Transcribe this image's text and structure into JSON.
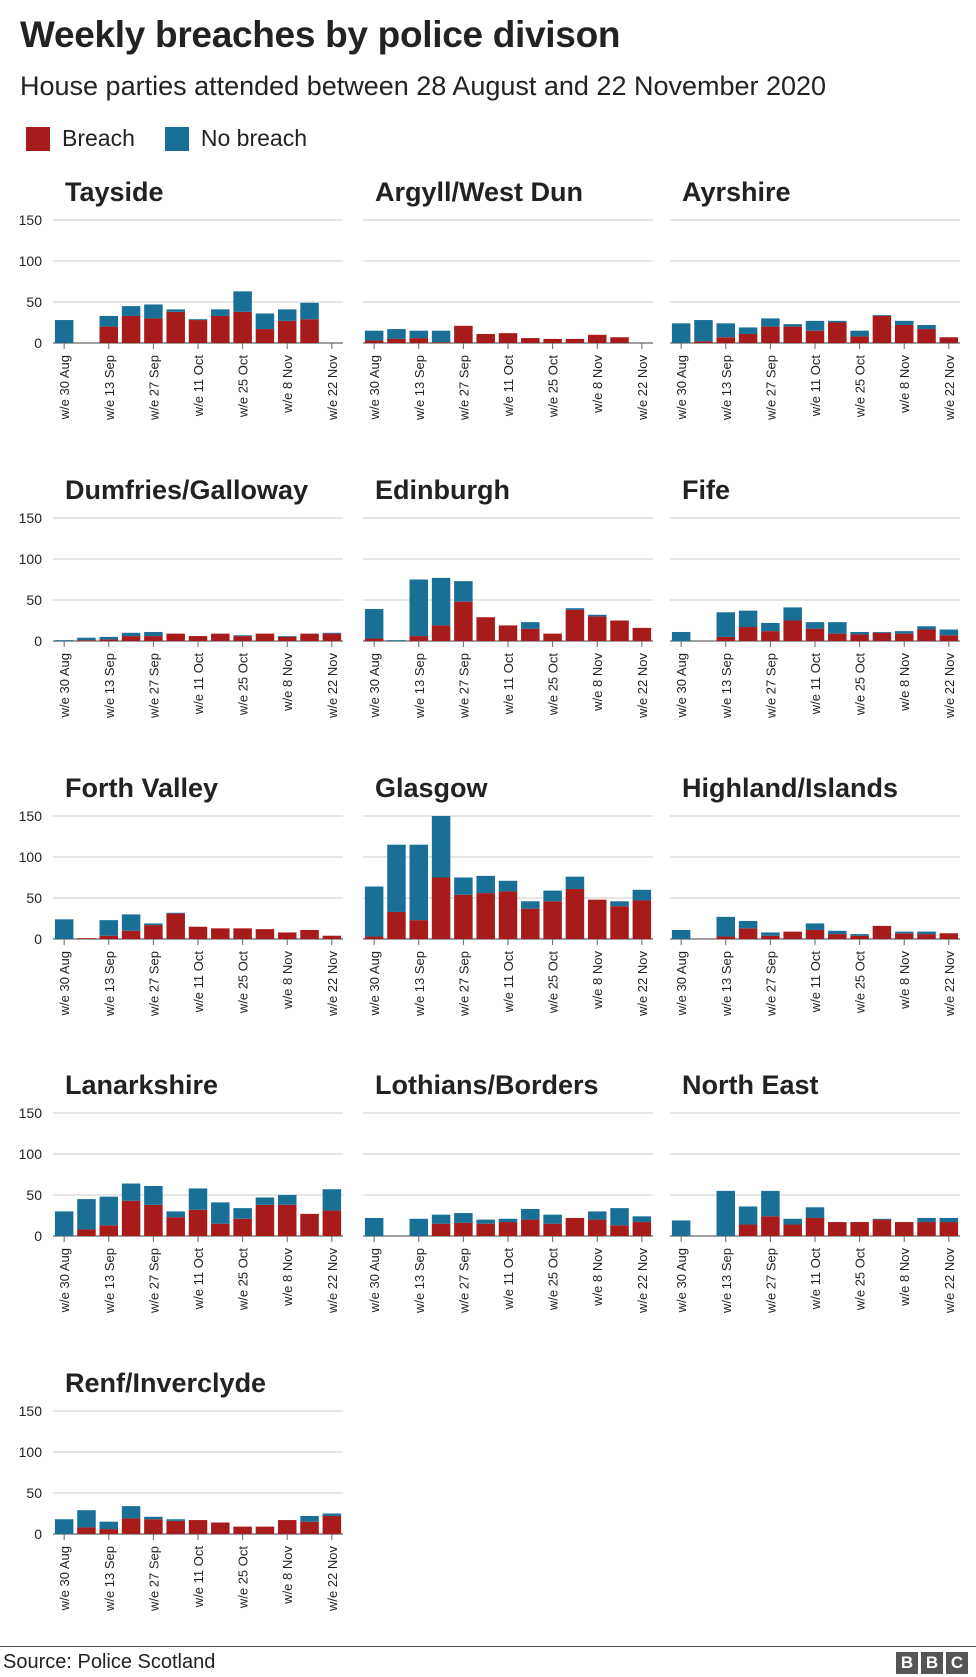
{
  "title": "Weekly breaches by police divison",
  "subtitle": "House parties attended between 28 August and 22 November 2020",
  "legend": [
    {
      "label": "Breach",
      "color": "#a81b1b"
    },
    {
      "label": "No breach",
      "color": "#1a6f96"
    }
  ],
  "source": "Source: Police Scotland",
  "logo": [
    "B",
    "B",
    "C"
  ],
  "chart_data": {
    "type": "bar",
    "stacked": true,
    "x_tick_labels": [
      "w/e 30 Aug",
      "w/e 13 Sep",
      "w/e 27 Sep",
      "w/e 11 Oct",
      "w/e 25 Oct",
      "w/e 8 Nov",
      "w/e 22 Nov"
    ],
    "y_ticks": [
      0,
      50,
      100,
      150
    ],
    "ylim": [
      0,
      150
    ],
    "grid": true,
    "weeks": 13,
    "series_names": [
      "Breach",
      "No breach"
    ],
    "panels": [
      {
        "name": "Tayside",
        "breach": [
          0,
          0,
          20,
          33,
          30,
          38,
          28,
          33,
          38,
          17,
          27,
          29,
          0
        ],
        "no_breach": [
          28,
          0,
          13,
          12,
          17,
          3,
          1,
          8,
          25,
          19,
          14,
          20,
          0
        ]
      },
      {
        "name": "Argyll/West Dun",
        "breach": [
          3,
          5,
          6,
          1,
          21,
          11,
          12,
          6,
          5,
          5,
          10,
          7,
          0
        ],
        "no_breach": [
          12,
          12,
          9,
          14,
          0,
          0,
          0,
          0,
          0,
          0,
          0,
          0,
          0
        ]
      },
      {
        "name": "Ayrshire",
        "breach": [
          0,
          2,
          7,
          11,
          20,
          20,
          15,
          25,
          8,
          33,
          22,
          17,
          7
        ],
        "no_breach": [
          24,
          26,
          17,
          8,
          10,
          3,
          12,
          2,
          7,
          1,
          5,
          5,
          0
        ]
      },
      {
        "name": "Dumfries/Galloway",
        "breach": [
          0,
          1,
          2,
          6,
          6,
          9,
          6,
          9,
          6,
          9,
          5,
          9,
          9
        ],
        "no_breach": [
          1,
          3,
          3,
          4,
          5,
          0,
          0,
          0,
          1,
          0,
          1,
          0,
          1
        ]
      },
      {
        "name": "Edinburgh",
        "breach": [
          3,
          0,
          6,
          19,
          48,
          29,
          19,
          15,
          9,
          38,
          30,
          25,
          16
        ],
        "no_breach": [
          36,
          1,
          69,
          58,
          25,
          0,
          0,
          8,
          0,
          2,
          2,
          0,
          0
        ]
      },
      {
        "name": "Fife",
        "breach": [
          0,
          0,
          5,
          17,
          12,
          25,
          15,
          9,
          8,
          10,
          9,
          14,
          7
        ],
        "no_breach": [
          11,
          0,
          30,
          20,
          10,
          16,
          8,
          14,
          3,
          1,
          3,
          4,
          7
        ]
      },
      {
        "name": "Forth Valley",
        "breach": [
          0,
          1,
          4,
          10,
          17,
          31,
          15,
          13,
          13,
          12,
          8,
          11,
          4
        ],
        "no_breach": [
          24,
          0,
          19,
          20,
          2,
          1,
          0,
          0,
          0,
          0,
          0,
          0,
          0
        ]
      },
      {
        "name": "Glasgow",
        "breach": [
          3,
          33,
          23,
          75,
          54,
          56,
          58,
          37,
          46,
          61,
          48,
          40,
          47
        ],
        "no_breach": [
          61,
          82,
          92,
          75,
          21,
          21,
          13,
          9,
          13,
          15,
          0,
          6,
          13
        ]
      },
      {
        "name": "Highland/Islands",
        "breach": [
          0,
          0,
          3,
          13,
          4,
          9,
          11,
          6,
          4,
          16,
          7,
          6,
          7
        ],
        "no_breach": [
          11,
          0,
          24,
          9,
          4,
          0,
          8,
          4,
          2,
          0,
          2,
          3,
          0
        ]
      },
      {
        "name": "Lanarkshire",
        "breach": [
          0,
          8,
          13,
          43,
          38,
          23,
          32,
          15,
          21,
          38,
          38,
          27,
          31
        ],
        "no_breach": [
          30,
          37,
          35,
          21,
          23,
          7,
          26,
          26,
          13,
          9,
          12,
          0,
          26
        ]
      },
      {
        "name": "Lothians/Borders",
        "breach": [
          0,
          0,
          0,
          15,
          16,
          15,
          17,
          20,
          15,
          22,
          20,
          13,
          17
        ],
        "no_breach": [
          22,
          0,
          21,
          11,
          12,
          5,
          4,
          13,
          11,
          0,
          10,
          21,
          7
        ]
      },
      {
        "name": "North East",
        "breach": [
          0,
          0,
          0,
          14,
          24,
          14,
          22,
          17,
          17,
          20,
          17,
          17,
          17
        ],
        "no_breach": [
          19,
          0,
          55,
          22,
          31,
          7,
          13,
          0,
          0,
          1,
          0,
          5,
          5
        ]
      },
      {
        "name": "Renf/Inverclyde",
        "breach": [
          0,
          8,
          6,
          19,
          18,
          16,
          17,
          14,
          9,
          9,
          17,
          15,
          22
        ],
        "no_breach": [
          18,
          21,
          9,
          15,
          3,
          2,
          0,
          0,
          0,
          0,
          0,
          7,
          3
        ]
      }
    ]
  }
}
